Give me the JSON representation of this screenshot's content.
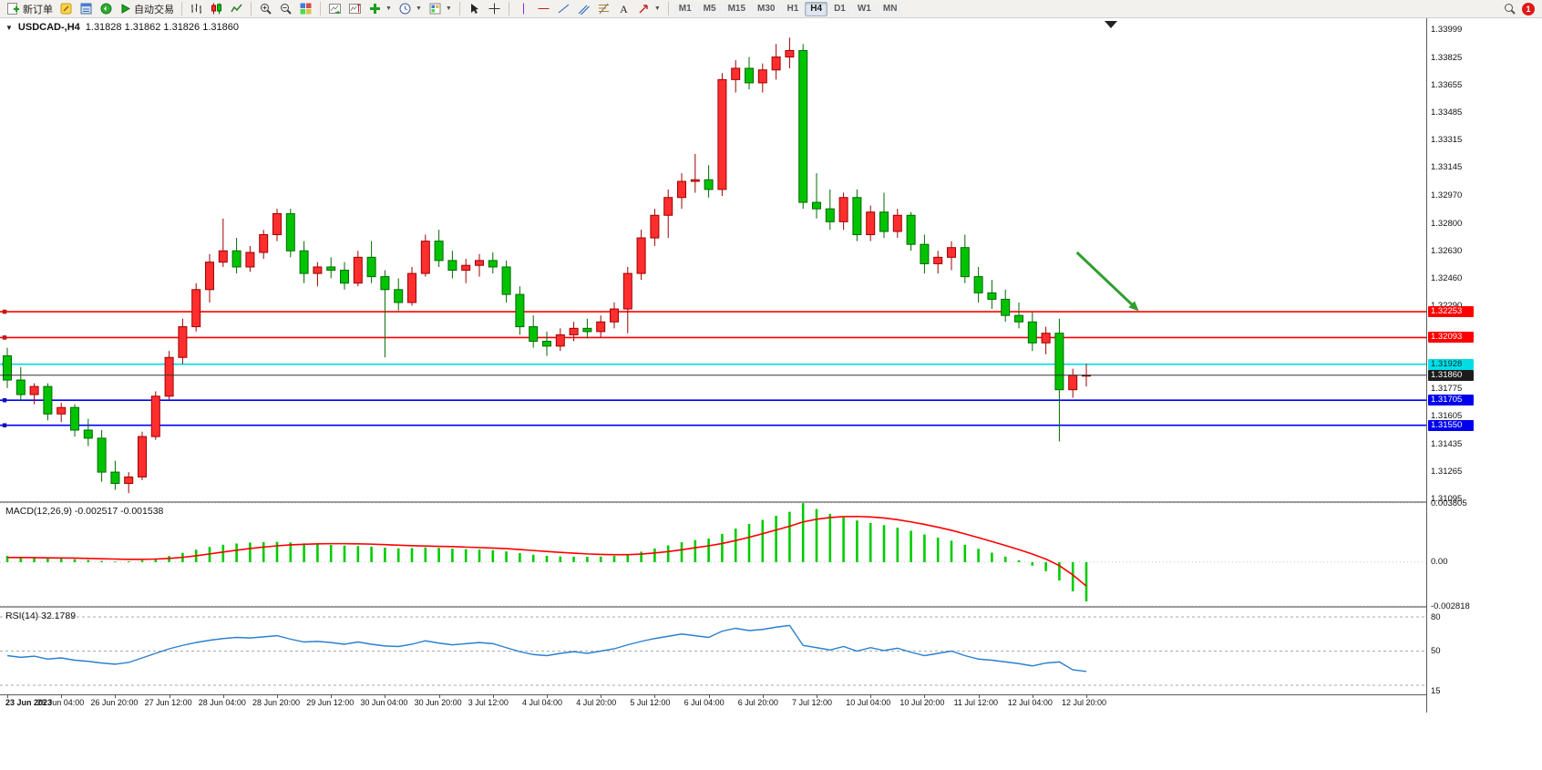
{
  "toolbar": {
    "new_order_label": "新订单",
    "autotrading_label": "自动交易",
    "timeframes": [
      "M1",
      "M5",
      "M15",
      "M30",
      "H1",
      "H4",
      "D1",
      "W1",
      "MN"
    ],
    "active_timeframe": "H4",
    "notification_count": "1"
  },
  "chart": {
    "symbol_label": "USDCAD-,H4",
    "quote": "1.31828 1.31862 1.31826 1.31860"
  },
  "chart_data": {
    "type": "candlestick",
    "symbol": "USDCAD",
    "timeframe": "H4",
    "price_max": 1.3407,
    "price_min": 1.3108,
    "bull_color": "#ff2e2e",
    "bull_stroke": "#9e0000",
    "bear_color": "#00c300",
    "bear_stroke": "#006a00",
    "candles": [
      [
        1.3198,
        1.3203,
        1.3178,
        1.3183
      ],
      [
        1.3183,
        1.3191,
        1.317,
        1.3174
      ],
      [
        1.3174,
        1.3181,
        1.3168,
        1.3179
      ],
      [
        1.3179,
        1.3181,
        1.3158,
        1.3162
      ],
      [
        1.3162,
        1.3169,
        1.3157,
        1.3166
      ],
      [
        1.3166,
        1.3168,
        1.3148,
        1.3152
      ],
      [
        1.3152,
        1.3159,
        1.3142,
        1.3147
      ],
      [
        1.3147,
        1.3152,
        1.312,
        1.3126
      ],
      [
        1.3126,
        1.3133,
        1.3115,
        1.3119
      ],
      [
        1.3119,
        1.3126,
        1.3113,
        1.3123
      ],
      [
        1.3123,
        1.3151,
        1.3121,
        1.3148
      ],
      [
        1.3148,
        1.3176,
        1.3146,
        1.3173
      ],
      [
        1.3173,
        1.3201,
        1.3171,
        1.3197
      ],
      [
        1.3197,
        1.3221,
        1.3193,
        1.3216
      ],
      [
        1.3216,
        1.3243,
        1.3213,
        1.3239
      ],
      [
        1.3239,
        1.3261,
        1.3231,
        1.3256
      ],
      [
        1.3256,
        1.3283,
        1.3253,
        1.3263
      ],
      [
        1.3263,
        1.3271,
        1.3249,
        1.3253
      ],
      [
        1.3253,
        1.3266,
        1.325,
        1.3262
      ],
      [
        1.3262,
        1.3276,
        1.3258,
        1.3273
      ],
      [
        1.3273,
        1.3289,
        1.3269,
        1.3286
      ],
      [
        1.3286,
        1.3289,
        1.3259,
        1.3263
      ],
      [
        1.3263,
        1.3269,
        1.3243,
        1.3249
      ],
      [
        1.3249,
        1.3256,
        1.3241,
        1.3253
      ],
      [
        1.3253,
        1.3259,
        1.3246,
        1.3251
      ],
      [
        1.3251,
        1.3256,
        1.3239,
        1.3243
      ],
      [
        1.3243,
        1.3263,
        1.3241,
        1.3259
      ],
      [
        1.3259,
        1.3269,
        1.3243,
        1.3247
      ],
      [
        1.3247,
        1.3251,
        1.3197,
        1.3239
      ],
      [
        1.3239,
        1.3246,
        1.3226,
        1.3231
      ],
      [
        1.3231,
        1.3253,
        1.3229,
        1.3249
      ],
      [
        1.3249,
        1.3273,
        1.3247,
        1.3269
      ],
      [
        1.3269,
        1.3276,
        1.3253,
        1.3257
      ],
      [
        1.3257,
        1.3263,
        1.3246,
        1.3251
      ],
      [
        1.3251,
        1.3258,
        1.3243,
        1.3254
      ],
      [
        1.3254,
        1.3261,
        1.3247,
        1.3257
      ],
      [
        1.3257,
        1.3262,
        1.3249,
        1.3253
      ],
      [
        1.3253,
        1.3257,
        1.3231,
        1.3236
      ],
      [
        1.3236,
        1.3241,
        1.3211,
        1.3216
      ],
      [
        1.3216,
        1.3223,
        1.3203,
        1.3207
      ],
      [
        1.3207,
        1.3213,
        1.3198,
        1.3204
      ],
      [
        1.3204,
        1.3215,
        1.3201,
        1.3211
      ],
      [
        1.3211,
        1.3219,
        1.3207,
        1.3215
      ],
      [
        1.3215,
        1.3221,
        1.3209,
        1.3213
      ],
      [
        1.3213,
        1.3223,
        1.3209,
        1.3219
      ],
      [
        1.3219,
        1.3231,
        1.3215,
        1.3227
      ],
      [
        1.3227,
        1.3253,
        1.3212,
        1.3249
      ],
      [
        1.3249,
        1.3276,
        1.3245,
        1.3271
      ],
      [
        1.3271,
        1.3289,
        1.3266,
        1.3285
      ],
      [
        1.3285,
        1.3301,
        1.3271,
        1.3296
      ],
      [
        1.3296,
        1.3311,
        1.3289,
        1.3306
      ],
      [
        1.3306,
        1.3323,
        1.3299,
        1.3307
      ],
      [
        1.3307,
        1.3316,
        1.3296,
        1.3301
      ],
      [
        1.3301,
        1.3373,
        1.3297,
        1.3369
      ],
      [
        1.3369,
        1.3381,
        1.3361,
        1.3376
      ],
      [
        1.3376,
        1.3383,
        1.3363,
        1.3367
      ],
      [
        1.3367,
        1.3379,
        1.3361,
        1.3375
      ],
      [
        1.3375,
        1.3391,
        1.3369,
        1.3383
      ],
      [
        1.3383,
        1.3395,
        1.3376,
        1.3387
      ],
      [
        1.3387,
        1.3391,
        1.3289,
        1.3293
      ],
      [
        1.3293,
        1.3311,
        1.3283,
        1.3289
      ],
      [
        1.3289,
        1.3301,
        1.3276,
        1.3281
      ],
      [
        1.3281,
        1.3299,
        1.3276,
        1.3296
      ],
      [
        1.3296,
        1.3301,
        1.3269,
        1.3273
      ],
      [
        1.3273,
        1.3291,
        1.3269,
        1.3287
      ],
      [
        1.3287,
        1.3299,
        1.3271,
        1.3275
      ],
      [
        1.3275,
        1.3289,
        1.3271,
        1.3285
      ],
      [
        1.3285,
        1.3287,
        1.3263,
        1.3267
      ],
      [
        1.3267,
        1.3273,
        1.3249,
        1.3255
      ],
      [
        1.3255,
        1.3263,
        1.3249,
        1.3259
      ],
      [
        1.3259,
        1.3269,
        1.3251,
        1.3265
      ],
      [
        1.3265,
        1.3273,
        1.3243,
        1.3247
      ],
      [
        1.3247,
        1.3253,
        1.3231,
        1.3237
      ],
      [
        1.3237,
        1.3245,
        1.3227,
        1.3233
      ],
      [
        1.3233,
        1.3239,
        1.3219,
        1.3223
      ],
      [
        1.3223,
        1.3231,
        1.3215,
        1.3219
      ],
      [
        1.3219,
        1.3225,
        1.3201,
        1.3206
      ],
      [
        1.3206,
        1.3216,
        1.3199,
        1.3212
      ],
      [
        1.3212,
        1.3221,
        1.3145,
        1.3177
      ],
      [
        1.3177,
        1.319,
        1.3172,
        1.3186
      ],
      [
        1.3186,
        1.3193,
        1.3179,
        1.3186
      ]
    ],
    "time_labels": [
      "23 Jun 2023",
      "26 Jun 04:00",
      "26 Jun 20:00",
      "27 Jun 12:00",
      "28 Jun 04:00",
      "28 Jun 20:00",
      "29 Jun 12:00",
      "30 Jun 04:00",
      "30 Jun 20:00",
      "3 Jul 12:00",
      "4 Jul 04:00",
      "4 Jul 20:00",
      "5 Jul 12:00",
      "6 Jul 04:00",
      "6 Jul 20:00",
      "7 Jul 12:00",
      "10 Jul 04:00",
      "10 Jul 20:00",
      "11 Jul 12:00",
      "12 Jul 04:00",
      "12 Jul 20:00"
    ],
    "price_ticks": [
      "1.33999",
      "1.33825",
      "1.33655",
      "1.33485",
      "1.33315",
      "1.33145",
      "1.32970",
      "1.32800",
      "1.32630",
      "1.32460",
      "1.32290",
      "1.31775",
      "1.31605",
      "1.31435",
      "1.31265",
      "1.31095"
    ],
    "price_lines": [
      {
        "price": 1.32253,
        "label": "1.32253",
        "color": "#ff0000",
        "badge_bg": "#ff0000",
        "badge_fg": "#ffffff"
      },
      {
        "price": 1.32093,
        "label": "1.32093",
        "color": "#ff0000",
        "badge_bg": "#ff0000",
        "badge_fg": "#ffffff"
      },
      {
        "price": 1.31928,
        "label": "1.31928",
        "color": "#00dde6",
        "badge_bg": "#00dde6",
        "badge_fg": "#00322f"
      },
      {
        "price": 1.31705,
        "label": "1.31705",
        "color": "#0000ff",
        "badge_bg": "#0000ee",
        "badge_fg": "#ffffff"
      },
      {
        "price": 1.3155,
        "label": "1.31550",
        "color": "#0000ff",
        "badge_bg": "#0000ee",
        "badge_fg": "#ffffff"
      }
    ],
    "current_price": {
      "price": 1.3186,
      "label": "1.31860",
      "color": "#333333",
      "badge_bg": "#1c1c1c",
      "badge_fg": "#ffffff"
    },
    "arrow": {
      "from_index": 79.3,
      "from_price": 1.3262,
      "to_index": 83.6,
      "to_price": 1.3228,
      "color": "#2f9e2f"
    },
    "macd": {
      "title": "MACD(12,26,9)",
      "current_values": "-0.002517 -0.001538",
      "scale_max": 0.003805,
      "scale_min": -0.002818,
      "axis_labels": [
        "0.003805",
        "0.00",
        "-0.002818"
      ],
      "axis_values": [
        0.003805,
        0,
        -0.002818
      ],
      "histogram_color": "#00cc00",
      "signal_color": "#ff0000",
      "histogram": [
        0.0004,
        0.00035,
        0.0003,
        0.00026,
        0.00023,
        0.00019,
        0.00014,
        8e-05,
        4e-05,
        6e-05,
        0.00012,
        0.00024,
        0.0004,
        0.0006,
        0.0008,
        0.00098,
        0.00112,
        0.0012,
        0.00126,
        0.00129,
        0.00131,
        0.00127,
        0.00121,
        0.00116,
        0.00111,
        0.00107,
        0.00104,
        0.001,
        0.00094,
        0.00089,
        0.00091,
        0.00095,
        0.00092,
        0.00087,
        0.00084,
        0.00081,
        0.00077,
        0.00069,
        0.00058,
        0.00048,
        0.00041,
        0.00037,
        0.00035,
        0.00034,
        0.00036,
        0.00041,
        0.00052,
        0.00068,
        0.00088,
        0.00108,
        0.00128,
        0.00142,
        0.00152,
        0.00182,
        0.00216,
        0.00246,
        0.00272,
        0.00298,
        0.00324,
        0.0038,
        0.00342,
        0.0031,
        0.00288,
        0.00268,
        0.00252,
        0.00238,
        0.00222,
        0.00202,
        0.00178,
        0.00158,
        0.00138,
        0.00112,
        0.00086,
        0.00061,
        0.00036,
        0.00012,
        -0.00022,
        -0.00058,
        -0.00118,
        -0.00188,
        -0.00252
      ],
      "signal": [
        0.0003,
        0.0003,
        0.00029,
        0.00028,
        0.00027,
        0.00026,
        0.00024,
        0.00022,
        0.0002,
        0.00018,
        0.00018,
        0.0002,
        0.00024,
        0.00031,
        0.00041,
        0.00053,
        0.00065,
        0.00077,
        0.00088,
        0.00097,
        0.00105,
        0.00111,
        0.00115,
        0.00118,
        0.00119,
        0.00119,
        0.00118,
        0.00116,
        0.00113,
        0.00109,
        0.00106,
        0.00104,
        0.00102,
        0.001,
        0.00097,
        0.00094,
        0.00091,
        0.00087,
        0.00081,
        0.00075,
        0.00069,
        0.00063,
        0.00058,
        0.00053,
        0.0005,
        0.00048,
        0.00048,
        0.00052,
        0.00059,
        0.00068,
        0.0008,
        0.00093,
        0.00105,
        0.0012,
        0.00139,
        0.0016,
        0.00183,
        0.00207,
        0.00231,
        0.00259,
        0.00276,
        0.00287,
        0.00293,
        0.00294,
        0.00291,
        0.00284,
        0.00273,
        0.00259,
        0.00243,
        0.00225,
        0.00205,
        0.00182,
        0.00158,
        0.00133,
        0.00107,
        0.00081,
        0.00052,
        0.0002,
        -0.00022,
        -0.00082,
        -0.00154
      ]
    },
    "rsi": {
      "title": "RSI(14)",
      "current_value": "32.1789",
      "scale_max": 88,
      "scale_min": 12,
      "axis_labels": [
        "80",
        "50",
        "15"
      ],
      "axis_values": [
        80,
        50,
        15
      ],
      "level_lines": [
        80,
        50,
        20
      ],
      "line_color": "#2a7fd0",
      "values": [
        46,
        44.5,
        45.5,
        43,
        44,
        42,
        41,
        39.5,
        38.5,
        40,
        44,
        48,
        52,
        55,
        57.5,
        59.5,
        61,
        62,
        61.5,
        62.5,
        63.5,
        60.5,
        58,
        58.5,
        57.5,
        56,
        58,
        56,
        54.5,
        54,
        56,
        59,
        57,
        55.5,
        56.5,
        57.5,
        56.5,
        53,
        49.5,
        47,
        46,
        48,
        49.5,
        48,
        50,
        52,
        55.5,
        58.5,
        61,
        63,
        65,
        63.5,
        62,
        67.5,
        70,
        68,
        69,
        71,
        72.5,
        55,
        53,
        51,
        54,
        50,
        53,
        50.5,
        52.5,
        49,
        46,
        48,
        50,
        46,
        43,
        42,
        40.5,
        39,
        37,
        39.5,
        40.5,
        33.5,
        32.18
      ]
    }
  }
}
